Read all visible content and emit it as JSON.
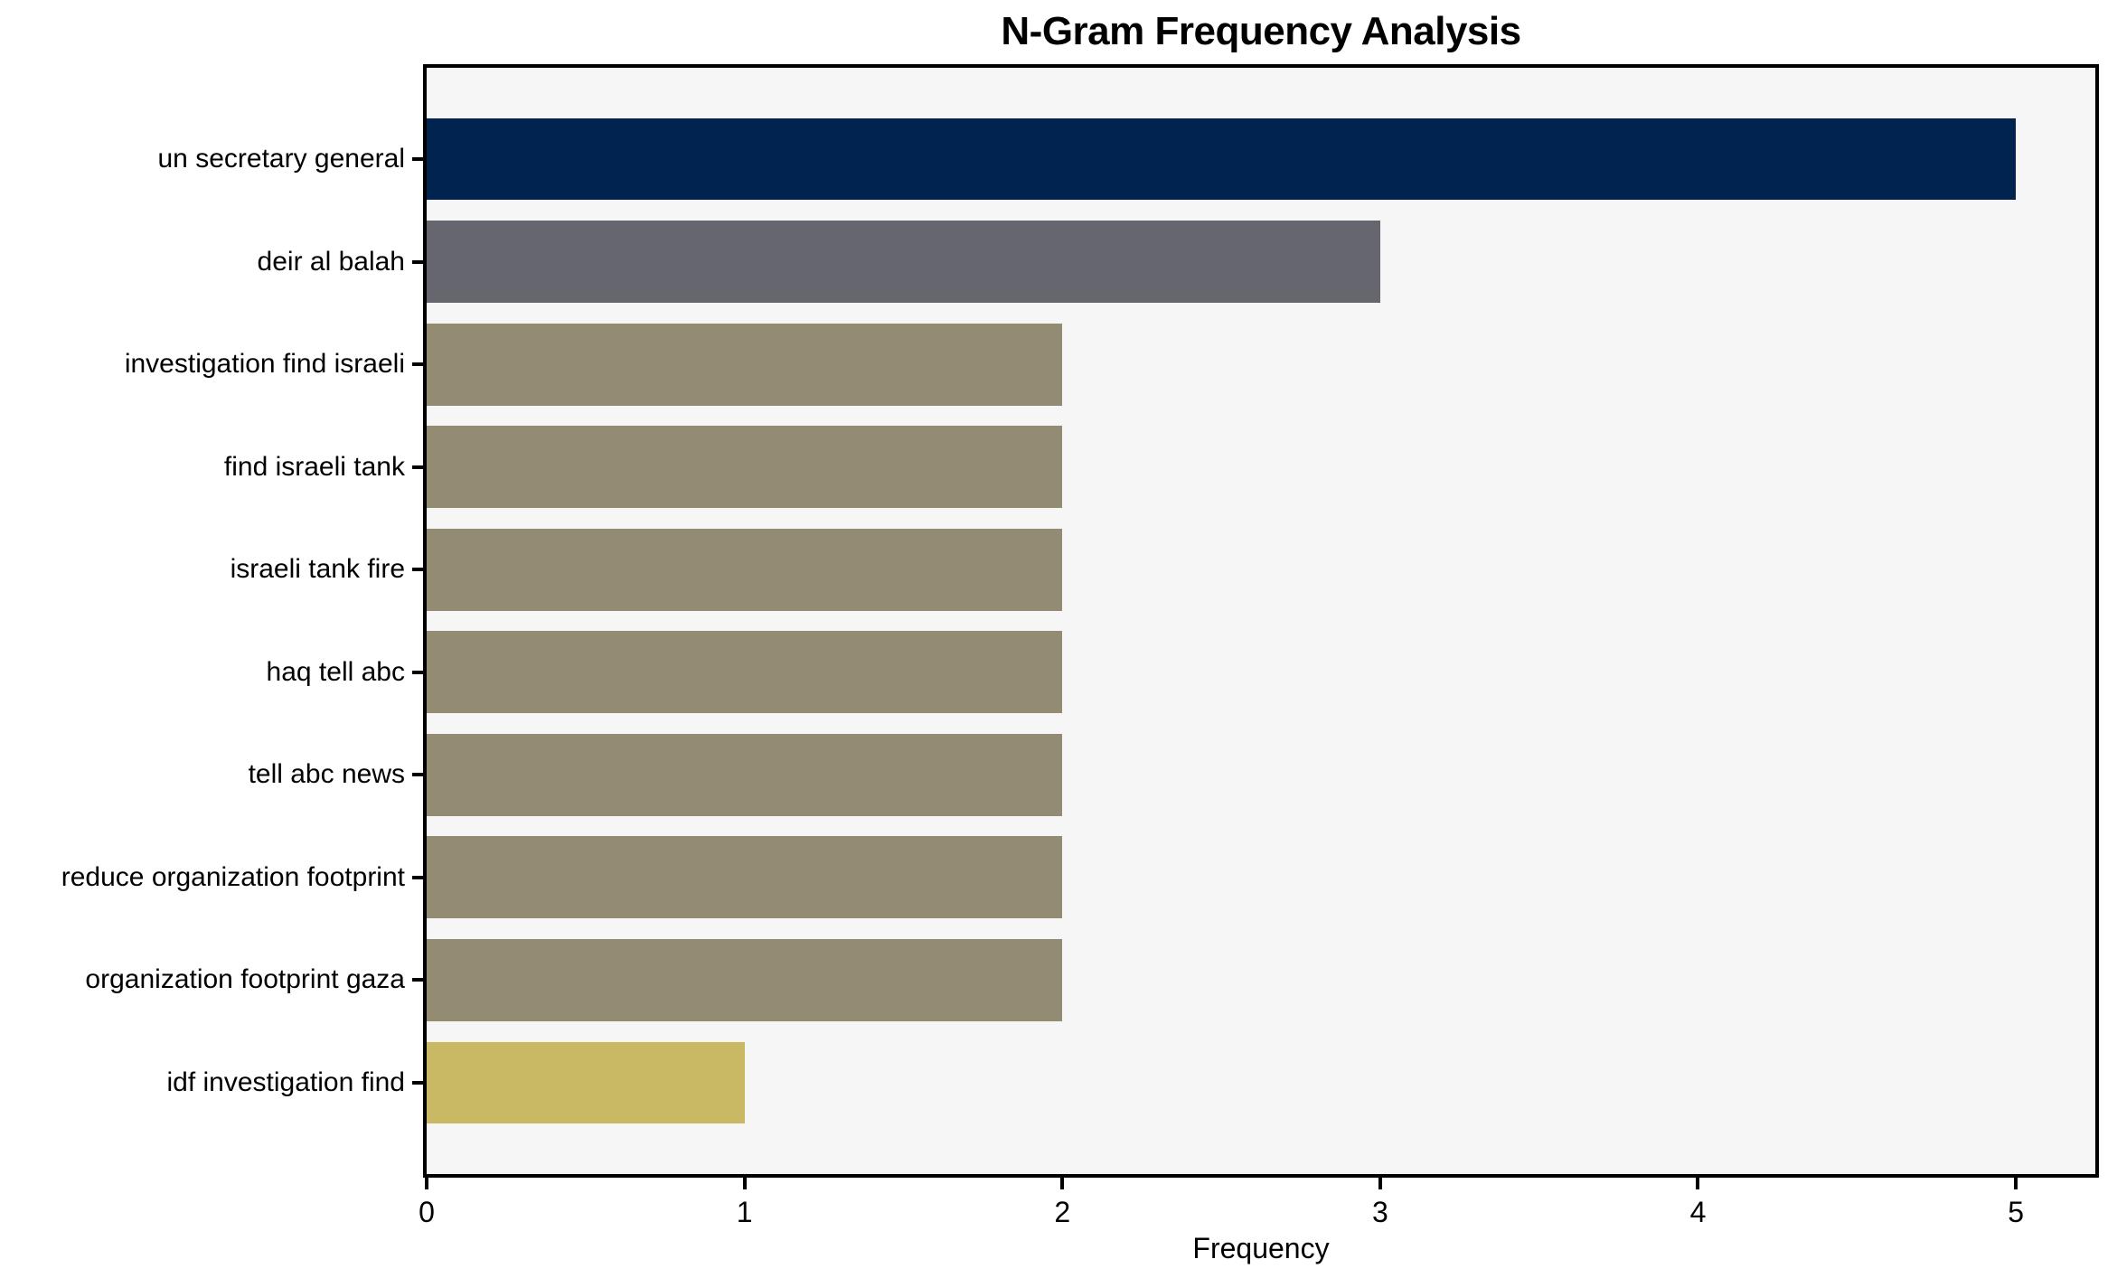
{
  "chart_data": {
    "type": "bar",
    "orientation": "horizontal",
    "title": "N-Gram Frequency Analysis",
    "xlabel": "Frequency",
    "ylabel": "",
    "categories": [
      "un secretary general",
      "deir al balah",
      "investigation find israeli",
      "find israeli tank",
      "israeli tank fire",
      "haq tell abc",
      "tell abc news",
      "reduce organization footprint",
      "organization footprint gaza",
      "idf investigation find"
    ],
    "values": [
      5,
      3,
      2,
      2,
      2,
      2,
      2,
      2,
      2,
      1
    ],
    "bar_colors": [
      "#012350",
      "#65666e",
      "#938c73",
      "#938c73",
      "#938c73",
      "#938c73",
      "#938c73",
      "#938c73",
      "#938c73",
      "#c9b964"
    ],
    "xticks": [
      0,
      1,
      2,
      3,
      4,
      5
    ],
    "xlim": [
      0,
      5.25
    ],
    "grid": false,
    "legend_position": "none",
    "plot_background": "#f6f6f7",
    "figure_background": "#ffffff",
    "axis_color": "#000000",
    "title_color": "#000000"
  }
}
